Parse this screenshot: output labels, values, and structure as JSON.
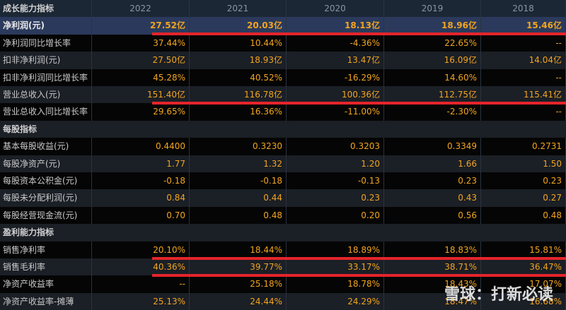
{
  "table": {
    "header": {
      "title": "成长能力指标",
      "columns": [
        "2022",
        "2021",
        "2020",
        "2019",
        "2018"
      ]
    },
    "rows": [
      {
        "label": "净利润(元)",
        "values": [
          "27.52亿",
          "20.03亿",
          "18.13亿",
          "18.96亿",
          "15.46亿"
        ],
        "highlight": true
      },
      {
        "label": "净利润同比增长率",
        "values": [
          "37.44%",
          "10.44%",
          "-4.36%",
          "22.65%",
          "--"
        ]
      },
      {
        "label": "扣非净利润(元)",
        "values": [
          "27.50亿",
          "18.93亿",
          "13.47亿",
          "16.09亿",
          "14.04亿"
        ]
      },
      {
        "label": "扣非净利润同比增长率",
        "values": [
          "45.28%",
          "40.52%",
          "-16.29%",
          "14.60%",
          "--"
        ]
      },
      {
        "label": "营业总收入(元)",
        "values": [
          "151.40亿",
          "116.78亿",
          "100.36亿",
          "112.75亿",
          "115.41亿"
        ]
      },
      {
        "label": "营业总收入同比增长率",
        "values": [
          "29.65%",
          "16.36%",
          "-11.00%",
          "-2.30%",
          "--"
        ]
      },
      {
        "section": "每股指标"
      },
      {
        "label": "基本每股收益(元)",
        "values": [
          "0.4400",
          "0.3230",
          "0.3203",
          "0.3349",
          "0.2731"
        ]
      },
      {
        "label": "每股净资产(元)",
        "values": [
          "1.77",
          "1.32",
          "1.20",
          "1.66",
          "1.50"
        ]
      },
      {
        "label": "每股资本公积金(元)",
        "values": [
          "-0.18",
          "-0.18",
          "-0.13",
          "0.23",
          "0.23"
        ]
      },
      {
        "label": "每股未分配利润(元)",
        "values": [
          "0.84",
          "0.44",
          "0.23",
          "0.43",
          "0.27"
        ]
      },
      {
        "label": "每股经营现金流(元)",
        "values": [
          "0.70",
          "0.48",
          "0.20",
          "0.56",
          "0.48"
        ]
      },
      {
        "section": "盈利能力指标"
      },
      {
        "label": "销售净利率",
        "values": [
          "20.10%",
          "18.44%",
          "18.89%",
          "18.83%",
          "15.81%"
        ]
      },
      {
        "label": "销售毛利率",
        "values": [
          "40.36%",
          "39.77%",
          "33.17%",
          "38.71%",
          "36.47%"
        ]
      },
      {
        "label": "净资产收益率",
        "values": [
          "--",
          "25.18%",
          "18.78%",
          "18.43%",
          "17.07%"
        ]
      },
      {
        "label": "净资产收益率-摊薄",
        "values": [
          "25.13%",
          "24.44%",
          "24.29%",
          "18.47%",
          "16.68%"
        ]
      }
    ]
  },
  "watermark": "雪球：打新必读"
}
